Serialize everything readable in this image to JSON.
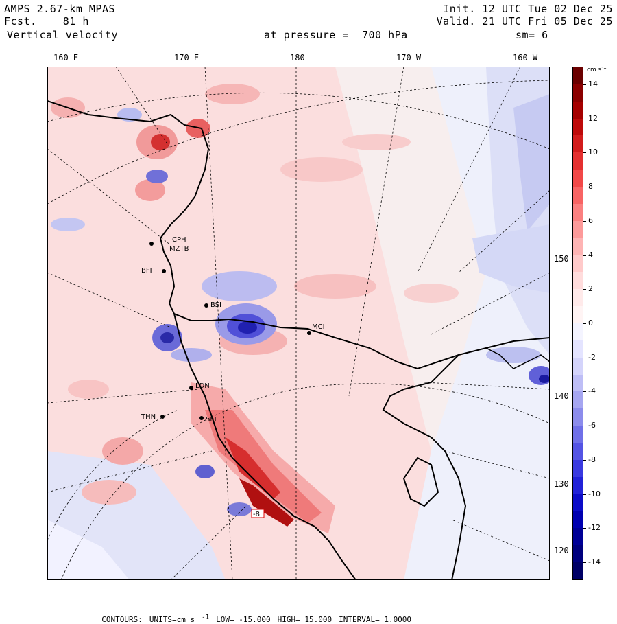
{
  "header": {
    "model": "AMPS 2.67-km MPAS",
    "fcst_label": "Fcst.",
    "fcst_value": "81 h",
    "field": "Vertical velocity",
    "pressure_label": "at pressure =",
    "pressure_value": "700 hPa",
    "init": "Init. 12 UTC Tue 02 Dec 25",
    "valid": "Valid. 21 UTC Fri 05 Dec 25",
    "smoothing": "sm= 6"
  },
  "longitude_labels": [
    "160 E",
    "170 E",
    "180",
    "170 W",
    "160 W"
  ],
  "latitude_labels": [
    "150 W",
    "140 W",
    "130 W",
    "120 W"
  ],
  "stations": [
    "CPH",
    "MZTB",
    "BFI",
    "BSI",
    "MCI",
    "LDN",
    "THN",
    "SEL",
    "-8"
  ],
  "colorbar": {
    "unit": "cm s",
    "unit_exp": "-1",
    "labels": [
      "14",
      "12",
      "10",
      "8",
      "6",
      "4",
      "2",
      "0",
      "-2",
      "-4",
      "-6",
      "-8",
      "-10",
      "-12",
      "-14"
    ],
    "colors": [
      "#6b0000",
      "#8b0000",
      "#a50000",
      "#be0a0a",
      "#d21c1c",
      "#e43030",
      "#f24848",
      "#f86464",
      "#fb8080",
      "#fd9a9a",
      "#feb4b4",
      "#ffcaca",
      "#ffdcdc",
      "#ffeaea",
      "#fff4f4",
      "#f4f4ff",
      "#e4e4ff",
      "#d4d4fb",
      "#bebef6",
      "#a6a6f1",
      "#8c8cec",
      "#7070e8",
      "#5454e4",
      "#3a3ae0",
      "#2222d8",
      "#0c0cc8",
      "#0000b0",
      "#000096",
      "#00007e",
      "#000066"
    ]
  },
  "footer": {
    "contours": "CONTOURS:",
    "units": "UNITS=cm s",
    "units_exp": "-1",
    "low": "LOW= -15.000",
    "high": "HIGH= 15.000",
    "interval": "INTERVAL= 1.0000"
  }
}
